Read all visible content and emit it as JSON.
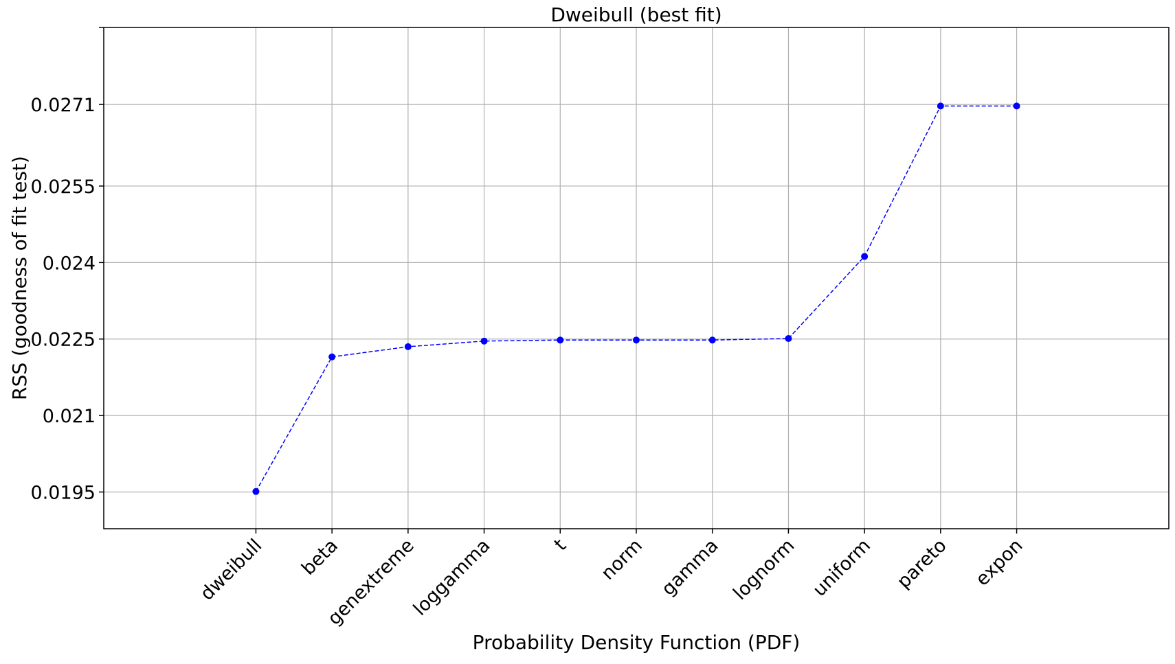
{
  "chart_data": {
    "type": "line",
    "title": "Dweibull (best fit)",
    "xlabel": "Probability Density Function (PDF)",
    "ylabel": "RSS (goodness of fit test)",
    "categories": [
      "dweibull",
      "beta",
      "genextreme",
      "loggamma",
      "t",
      "norm",
      "gamma",
      "lognorm",
      "uniform",
      "pareto",
      "expon"
    ],
    "series": [
      {
        "values": [
          0.01951,
          0.02215,
          0.02235,
          0.02246,
          0.02248,
          0.02248,
          0.02248,
          0.02251,
          0.02412,
          0.02707,
          0.02707
        ]
      }
    ],
    "yticks": [
      0.0195,
      0.021,
      0.0225,
      0.024,
      0.0255,
      0.0271
    ],
    "ytick_labels": [
      "0.0195",
      "0.021",
      "0.0225",
      "0.024",
      "0.0255",
      "0.0271"
    ],
    "ylim": [
      0.01878,
      0.02861
    ],
    "x_index_range": [
      -2,
      12
    ],
    "grid": true,
    "line_style": "dashed",
    "marker": "circle",
    "colors": {
      "series": "#0000ff",
      "grid": "#b0b0b0",
      "axes": "#000000"
    }
  }
}
